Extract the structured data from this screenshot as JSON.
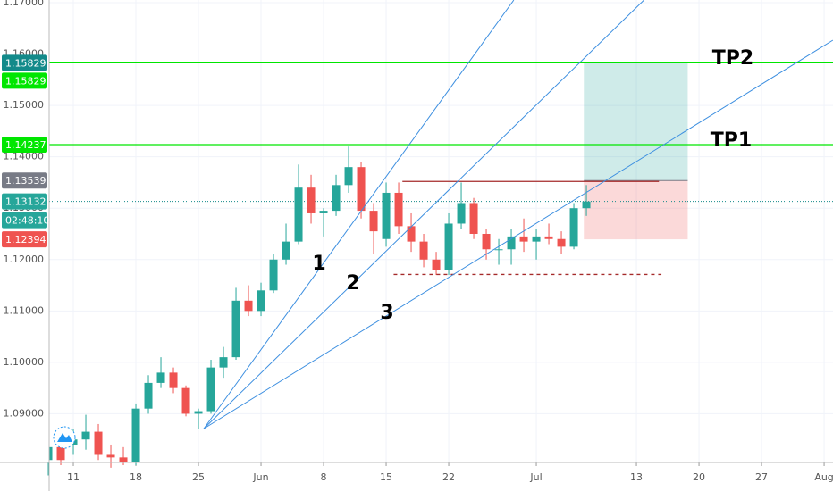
{
  "chart_data": {
    "type": "candlestick",
    "xlim": [
      -1.93,
      60.71
    ],
    "ylim": [
      1.08052,
      1.17052
    ],
    "yticks": [
      {
        "value": 1.17,
        "label": "1.17000"
      },
      {
        "value": 1.16,
        "label": "1.16000"
      },
      {
        "value": 1.15,
        "label": "1.15000"
      },
      {
        "value": 1.14,
        "label": "1.14000"
      },
      {
        "value": 1.13,
        "label": "1.13000"
      },
      {
        "value": 1.12,
        "label": "1.12000"
      },
      {
        "value": 1.11,
        "label": "1.11000"
      },
      {
        "value": 1.1,
        "label": "1.10000"
      },
      {
        "value": 1.09,
        "label": "1.09000"
      }
    ],
    "xticks": [
      {
        "value": 0,
        "label": "11"
      },
      {
        "value": 5,
        "label": "18"
      },
      {
        "value": 10,
        "label": "25"
      },
      {
        "value": 15,
        "label": "Jun"
      },
      {
        "value": 20,
        "label": "8"
      },
      {
        "value": 25,
        "label": "15"
      },
      {
        "value": 30,
        "label": "22"
      },
      {
        "value": 37,
        "label": "Jul"
      },
      {
        "value": 45,
        "label": "13"
      },
      {
        "value": 50,
        "label": "20"
      },
      {
        "value": 55,
        "label": "27"
      },
      {
        "value": 60,
        "label": "Aug"
      }
    ],
    "grid": true,
    "up_color": "#26a69a",
    "down_color": "#ef5350",
    "x": [
      -2,
      -1,
      0,
      1,
      2,
      3,
      4,
      5,
      6,
      7,
      8,
      9,
      10,
      11,
      12,
      13,
      14,
      15,
      16,
      17,
      18,
      19,
      20,
      21,
      22,
      23,
      24,
      25,
      26,
      27,
      28,
      29,
      30,
      31,
      32,
      33,
      34,
      35,
      36,
      37,
      38,
      39,
      40,
      41
    ],
    "open": [
      1.081,
      1.0835,
      1.084,
      1.085,
      1.0865,
      1.082,
      1.0815,
      1.0805,
      1.091,
      1.096,
      1.098,
      1.095,
      1.09,
      1.0905,
      1.099,
      1.101,
      1.112,
      1.11,
      1.114,
      1.12,
      1.1235,
      1.134,
      1.129,
      1.1295,
      1.1345,
      1.138,
      1.1295,
      1.124,
      1.133,
      1.1265,
      1.1235,
      1.12,
      1.118,
      1.127,
      1.131,
      1.125,
      1.122,
      1.122,
      1.1245,
      1.1235,
      1.1245,
      1.124,
      1.1225,
      1.13
    ],
    "high": [
      1.0845,
      1.086,
      1.087,
      1.0898,
      1.088,
      1.084,
      1.0835,
      1.092,
      1.0975,
      1.101,
      1.099,
      1.0955,
      1.091,
      1.1005,
      1.103,
      1.1145,
      1.115,
      1.1155,
      1.121,
      1.127,
      1.1385,
      1.1365,
      1.13,
      1.1365,
      1.142,
      1.139,
      1.131,
      1.135,
      1.135,
      1.129,
      1.125,
      1.1215,
      1.129,
      1.135,
      1.132,
      1.126,
      1.124,
      1.126,
      1.128,
      1.126,
      1.127,
      1.1255,
      1.131,
      1.1345
    ],
    "low": [
      1.078,
      1.08,
      1.082,
      1.083,
      1.081,
      1.0795,
      1.08,
      1.08,
      1.09,
      1.095,
      1.094,
      1.0895,
      1.087,
      1.09,
      1.097,
      1.1005,
      1.109,
      1.109,
      1.1135,
      1.119,
      1.123,
      1.127,
      1.1245,
      1.1285,
      1.133,
      1.128,
      1.121,
      1.1225,
      1.125,
      1.1215,
      1.1185,
      1.117,
      1.117,
      1.126,
      1.124,
      1.12,
      1.119,
      1.119,
      1.1215,
      1.12,
      1.123,
      1.121,
      1.122,
      1.1285
    ],
    "close": [
      1.0835,
      1.081,
      1.085,
      1.0865,
      1.082,
      1.0815,
      1.0805,
      1.091,
      1.096,
      1.098,
      1.095,
      1.09,
      1.0905,
      1.099,
      1.101,
      1.112,
      1.11,
      1.114,
      1.12,
      1.1235,
      1.134,
      1.129,
      1.1295,
      1.1345,
      1.138,
      1.1295,
      1.1255,
      1.133,
      1.1265,
      1.1235,
      1.12,
      1.118,
      1.127,
      1.131,
      1.125,
      1.122,
      1.122,
      1.1245,
      1.1235,
      1.1245,
      1.124,
      1.1225,
      1.13,
      1.1313
    ],
    "price_labels": [
      {
        "value": 1.15829,
        "label": "1.15829",
        "color": "#138a8a"
      },
      {
        "value": 1.15829,
        "label": "1.15829",
        "color": "#00e600"
      },
      {
        "value": 1.14237,
        "label": "1.14237",
        "color": "#00e600"
      },
      {
        "value": 1.13539,
        "label": "1.13539",
        "color": "#787b86"
      },
      {
        "value": 1.13132,
        "label": "1.13132",
        "color": "#26a69a"
      },
      {
        "label": "02:48:10",
        "color": "#26a69a"
      },
      {
        "value": 1.12394,
        "label": "1.12394",
        "color": "#ef5350"
      }
    ],
    "hlines": [
      {
        "value": 1.15829,
        "color": "#00e600"
      },
      {
        "value": 1.14237,
        "color": "#00e600"
      }
    ],
    "current_price": {
      "value": 1.13132,
      "color": "#138a8a"
    },
    "segments": [
      {
        "x": [
          26.3,
          46.8
        ],
        "y": [
          1.1352,
          1.1352
        ],
        "color": "#a52a2a",
        "dashed": false
      },
      {
        "x": [
          25.6,
          47.0
        ],
        "y": [
          1.1171,
          1.1171
        ],
        "color": "#a52a2a",
        "dashed": true
      }
    ],
    "fan": {
      "origin": [
        10.43,
        1.0871
      ],
      "ends": [
        [
          35.2,
          1.1705
        ],
        [
          45.6,
          1.1705
        ],
        [
          60.7,
          1.1627
        ]
      ],
      "color": "#3d8fe0"
    },
    "position": {
      "x": [
        40.8,
        49.1
      ],
      "entry": 1.13539,
      "target": 1.15829,
      "stop": 1.12394
    },
    "annotations": [
      "1",
      "2",
      "3",
      "TP2",
      "TP1"
    ]
  }
}
